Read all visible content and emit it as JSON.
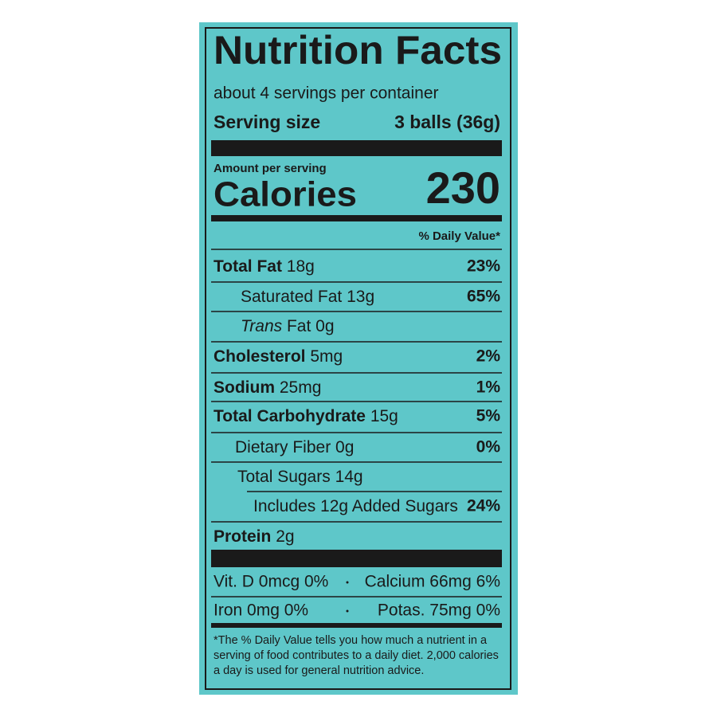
{
  "header": {
    "title": "Nutrition Facts",
    "servings": "about 4 servings per container",
    "serving_size_label": "Serving size",
    "serving_size": "3 balls (36g)"
  },
  "calories": {
    "amount_label": "Amount per serving",
    "label": "Calories",
    "value": "230"
  },
  "dv_header": "% Daily Value*",
  "nutrients": [
    {
      "name": "Total Fat",
      "amount": "18g",
      "dv": "23%"
    },
    {
      "name": "Saturated Fat",
      "amount": "13g",
      "dv": "65%"
    },
    {
      "prefix": "Trans",
      "name": "Fat",
      "amount": "0g"
    },
    {
      "name": "Cholesterol",
      "amount": "5mg",
      "dv": "2%"
    },
    {
      "name": "Sodium",
      "amount": "25mg",
      "dv": "1%"
    },
    {
      "name": "Total Carbohydrate",
      "amount": "15g",
      "dv": "5%"
    },
    {
      "name": "Dietary Fiber",
      "amount": "0g",
      "dv": "0%"
    },
    {
      "name": "Total Sugars",
      "amount": "14g"
    },
    {
      "name": "Includes 12g Added Sugars",
      "dv": "24%"
    },
    {
      "name": "Protein",
      "amount": "2g"
    }
  ],
  "vitamins": [
    [
      "Vit. D 0mcg 0%",
      "Calcium 66mg 6%"
    ],
    [
      "Iron 0mg 0%",
      "Potas. 75mg 0%"
    ]
  ],
  "footnote": "*The % Daily Value tells you how much a nutrient in a serving of food contributes to a daily diet. 2,000 calories a day is used for general nutrition advice."
}
